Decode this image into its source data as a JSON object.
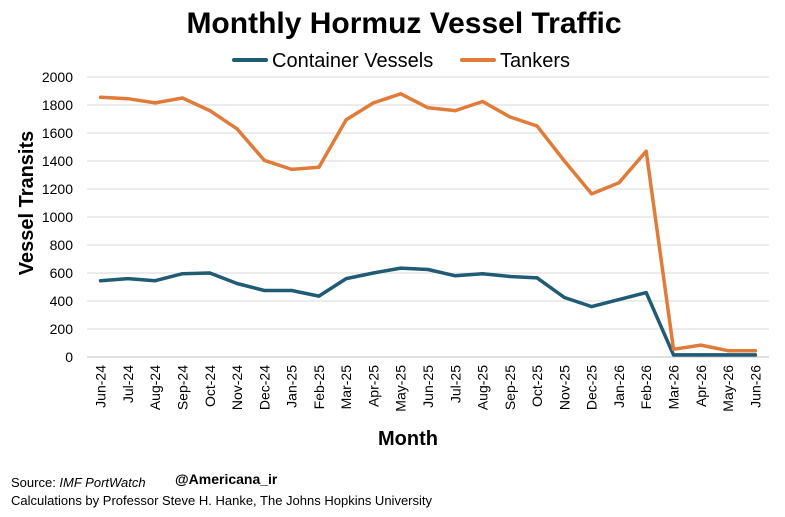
{
  "chart_data": {
    "type": "line",
    "title": "Monthly Hormuz Vessel Traffic",
    "xlabel": "Month",
    "ylabel": "Vessel Transits",
    "ylim": [
      0,
      2000
    ],
    "yticks": [
      0,
      200,
      400,
      600,
      800,
      1000,
      1200,
      1400,
      1600,
      1800,
      2000
    ],
    "grid": true,
    "legend_position": "top",
    "categories": [
      "Jun-24",
      "Jul-24",
      "Aug-24",
      "Sep-24",
      "Oct-24",
      "Nov-24",
      "Dec-24",
      "Jan-25",
      "Feb-25",
      "Mar-25",
      "Apr-25",
      "May-25",
      "Jun-25",
      "Jul-25",
      "Aug-25",
      "Sep-25",
      "Oct-25",
      "Nov-25",
      "Dec-25",
      "Jan-26",
      "Feb-26",
      "Mar-26",
      "Apr-26",
      "May-26",
      "Jun-26"
    ],
    "series": [
      {
        "name": "Container Vessels",
        "color": "#1f5c73",
        "values": [
          545,
          560,
          545,
          595,
          600,
          525,
          475,
          475,
          435,
          560,
          600,
          635,
          625,
          580,
          595,
          575,
          565,
          425,
          360,
          410,
          460,
          15,
          15,
          15,
          15
        ]
      },
      {
        "name": "Tankers",
        "color": "#e07b39",
        "values": [
          1855,
          1845,
          1815,
          1850,
          1760,
          1630,
          1405,
          1340,
          1355,
          1695,
          1815,
          1880,
          1780,
          1760,
          1825,
          1715,
          1650,
          1400,
          1165,
          1245,
          1470,
          55,
          85,
          45,
          45
        ]
      }
    ]
  },
  "footer": {
    "source_label": "Source: ",
    "source_name": "IMF PortWatch",
    "handle": "@Americana_ir",
    "credit": "Calculations by Professor Steve H. Hanke, The Johns Hopkins University"
  }
}
